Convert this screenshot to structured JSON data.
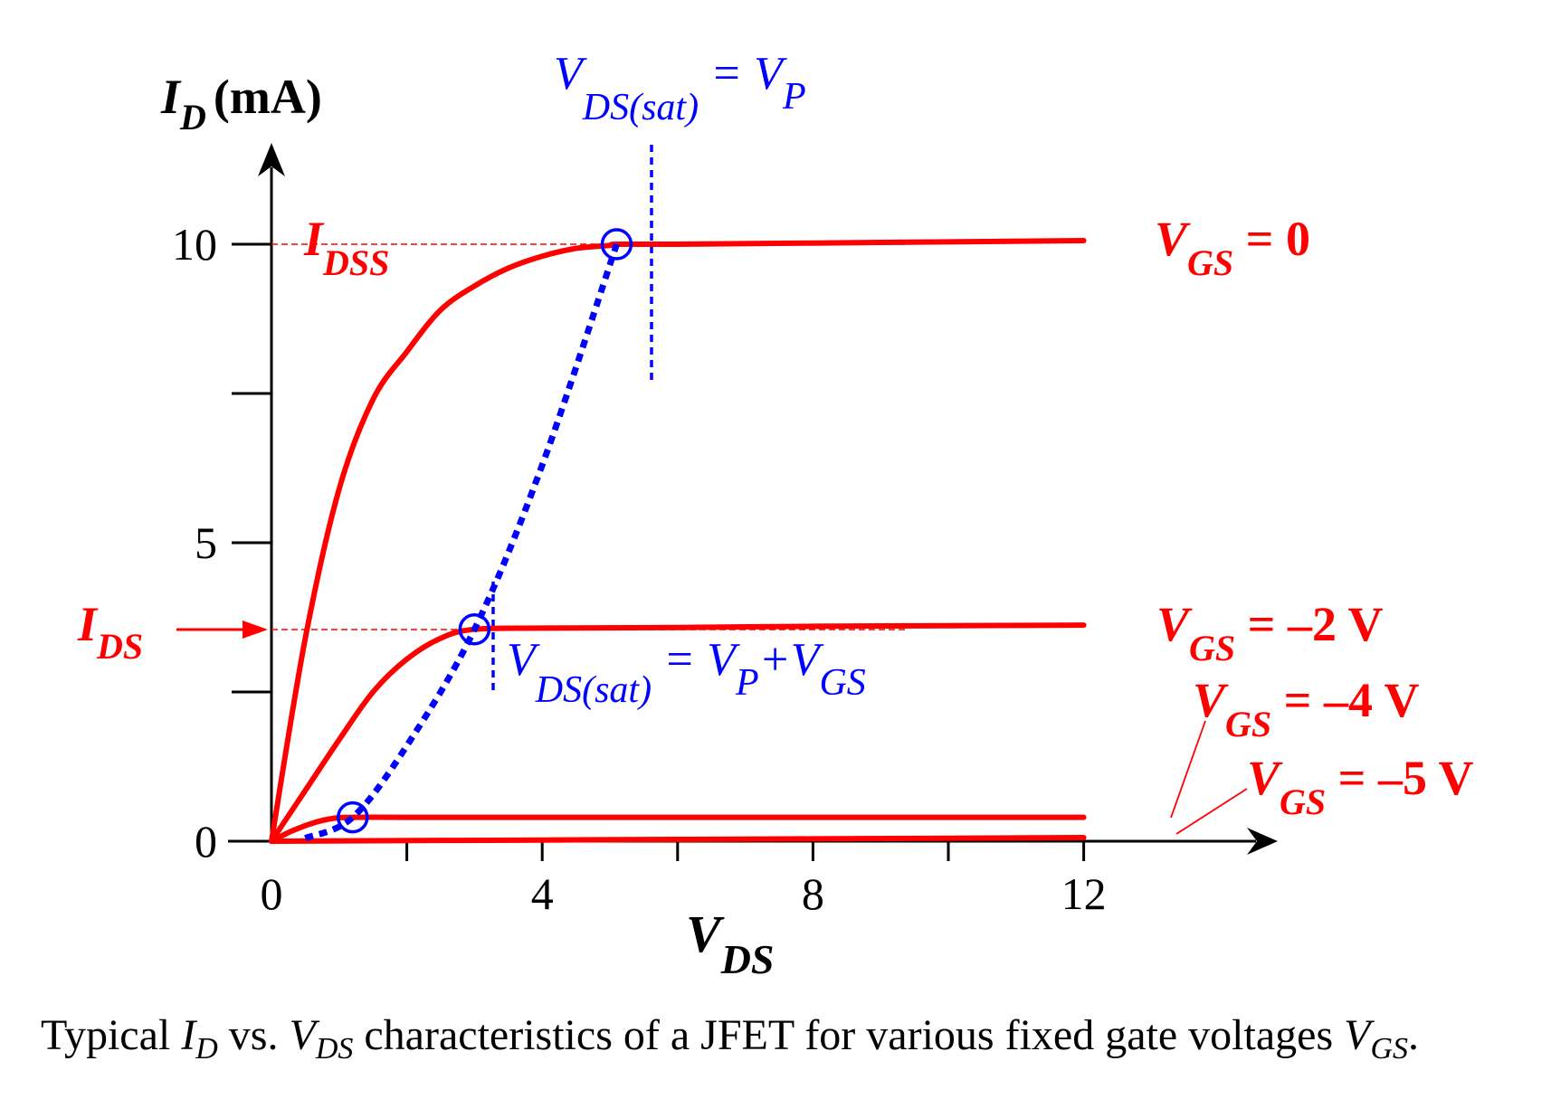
{
  "chart_data": {
    "type": "line",
    "title": "",
    "xlabel": {
      "main": "V",
      "sub": "DS"
    },
    "ylabel": {
      "main": "I",
      "sub": "D",
      "unit": "(mA)"
    },
    "xlim": [
      0,
      13.7
    ],
    "ylim": [
      0,
      11.7
    ],
    "x_ticks": [
      0,
      2,
      4,
      6,
      8,
      10,
      12
    ],
    "x_tick_labels": [
      "0",
      "",
      "4",
      "",
      "8",
      "",
      "12"
    ],
    "y_ticks": [
      0,
      2.5,
      5,
      7.5,
      10
    ],
    "y_tick_labels": [
      "0",
      "",
      "5",
      "",
      "10"
    ],
    "grid": false,
    "series": [
      {
        "name": "V_GS = 0",
        "label": {
          "main": "V",
          "sub": "GS",
          "rest": " = 0"
        },
        "color": "#ff0000",
        "x": [
          0,
          0.5,
          1,
          1.5,
          2,
          2.5,
          3,
          3.5,
          4,
          4.5,
          5,
          5.1,
          6,
          8,
          10,
          12
        ],
        "y": [
          0,
          3.4,
          5.9,
          7.4,
          8.2,
          8.9,
          9.3,
          9.6,
          9.8,
          9.93,
          9.98,
          10.0,
          10.0,
          10.02,
          10.04,
          10.06
        ]
      },
      {
        "name": "V_GS = -2 V",
        "label": {
          "main": "V",
          "sub": "GS",
          "rest": " = –2 V"
        },
        "color": "#ff0000",
        "x": [
          0,
          0.5,
          1,
          1.5,
          2,
          2.5,
          3,
          4,
          6,
          8,
          10,
          12
        ],
        "y": [
          0,
          0.85,
          1.7,
          2.5,
          3.05,
          3.4,
          3.55,
          3.57,
          3.58,
          3.6,
          3.61,
          3.62
        ]
      },
      {
        "name": "V_GS = -4 V",
        "label": {
          "main": "V",
          "sub": "GS",
          "rest": " = –4 V"
        },
        "color": "#ff0000",
        "x": [
          0,
          0.3,
          0.6,
          0.9,
          1.2,
          2,
          4,
          8,
          12
        ],
        "y": [
          0,
          0.17,
          0.3,
          0.38,
          0.4,
          0.4,
          0.4,
          0.4,
          0.4
        ]
      },
      {
        "name": "V_GS = -5 V",
        "label": {
          "main": "V",
          "sub": "GS",
          "rest": " = –5 V"
        },
        "color": "#ff0000",
        "x": [
          0,
          4,
          8,
          12
        ],
        "y": [
          0,
          0.02,
          0.04,
          0.06
        ]
      }
    ],
    "saturation_locus": {
      "color": "#0000ff",
      "x": [
        0.5,
        1.2,
        2,
        3,
        4,
        5.1
      ],
      "y": [
        0.05,
        0.4,
        1.6,
        3.55,
        6.3,
        10.0
      ],
      "points": [
        {
          "x": 1.2,
          "y": 0.4
        },
        {
          "x": 3.0,
          "y": 3.55
        },
        {
          "x": 5.1,
          "y": 10.0
        }
      ]
    },
    "annotations": {
      "idss": {
        "main": "I",
        "sub": "DSS",
        "y": 10
      },
      "ids": {
        "main": "I",
        "sub": "DS",
        "arrow": "→",
        "y": 3.55
      },
      "vp_label": {
        "v": "V",
        "sub": "DS(sat)",
        "rest": " = V",
        "sub2": "P"
      },
      "vp_gs_label": {
        "v": "V",
        "sub": "DS(sat)",
        "rest": " = V",
        "sub2": "P",
        "plus": "+V",
        "sub3": "GS"
      }
    }
  },
  "caption": {
    "text1": "Typical ",
    "i": "I",
    "i_sub": "D",
    "text2": " vs. ",
    "v": "V",
    "v_sub": "DS",
    "text3": " characteristics of a JFET for various fixed gate voltages ",
    "vgs": "V",
    "vgs_sub": "GS",
    "text4": "."
  }
}
